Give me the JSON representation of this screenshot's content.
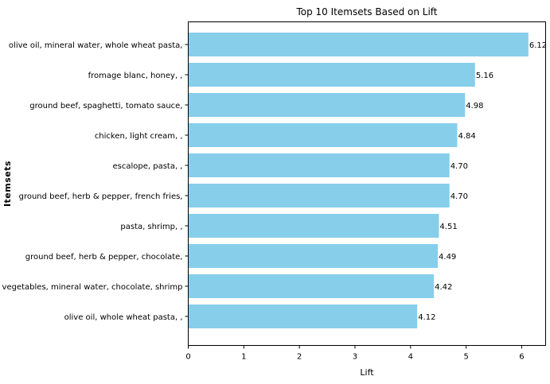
{
  "chart_data": {
    "type": "bar",
    "orientation": "horizontal",
    "title": "Top 10 Itemsets Based on Lift",
    "xlabel": "Lift",
    "ylabel": "Itemsets",
    "xlim": [
      0,
      6.43
    ],
    "xticks": [
      "0",
      "1",
      "2",
      "3",
      "4",
      "5",
      "6"
    ],
    "grid": false,
    "bar_color": "#87CEEB",
    "categories": [
      "olive oil,  mineral water, whole wheat pasta,",
      "fromage blanc,  honey,  ,",
      "ground beef,  spaghetti, tomato sauce,",
      "chicken,  light cream,  ,",
      "escalope,  pasta,  ,",
      "ground beef,  herb & pepper, french fries,",
      "pasta,  shrimp,  ,",
      "ground beef,  herb & pepper, chocolate,",
      "frozen vegetables,  mineral water, chocolate, shrimp",
      "olive oil,  whole wheat pasta,  ,"
    ],
    "values": [
      6.12,
      5.16,
      4.98,
      4.84,
      4.7,
      4.7,
      4.51,
      4.49,
      4.42,
      4.12
    ],
    "value_labels": [
      "6.12",
      "5.16",
      "4.98",
      "4.84",
      "4.70",
      "4.70",
      "4.51",
      "4.49",
      "4.42",
      "4.12"
    ]
  }
}
